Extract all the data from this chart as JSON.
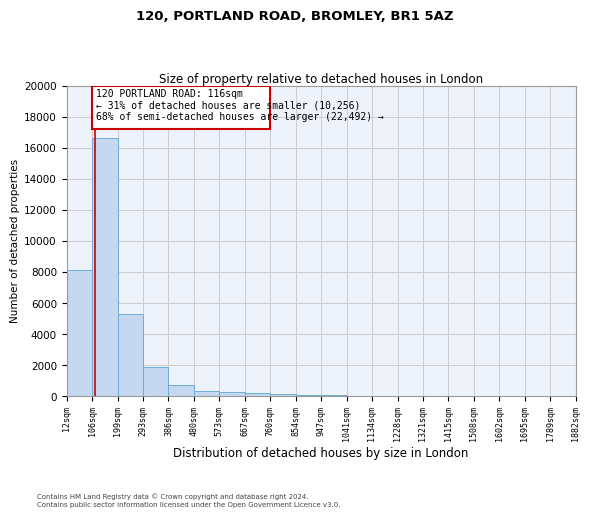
{
  "title1": "120, PORTLAND ROAD, BROMLEY, BR1 5AZ",
  "title2": "Size of property relative to detached houses in London",
  "xlabel": "Distribution of detached houses by size in London",
  "ylabel": "Number of detached properties",
  "annotation_line1": "120 PORTLAND ROAD: 116sqm",
  "annotation_line2": "← 31% of detached houses are smaller (10,256)",
  "annotation_line3": "68% of semi-detached houses are larger (22,492) →",
  "footer1": "Contains HM Land Registry data © Crown copyright and database right 2024.",
  "footer2": "Contains public sector information licensed under the Open Government Licence v3.0.",
  "bin_edges": [
    12,
    106,
    199,
    293,
    386,
    480,
    573,
    667,
    760,
    854,
    947,
    1041,
    1134,
    1228,
    1321,
    1415,
    1508,
    1602,
    1695,
    1789,
    1882
  ],
  "bar_heights": [
    8100,
    16600,
    5300,
    1850,
    750,
    350,
    275,
    200,
    150,
    80,
    60,
    45,
    35,
    25,
    18,
    12,
    9,
    7,
    5,
    4
  ],
  "bar_color": "#c5d8f0",
  "bar_edgecolor": "#6baed6",
  "property_size": 116,
  "vline_color": "#cc0000",
  "annotation_box_color": "#cc0000",
  "ylim": [
    0,
    20000
  ],
  "yticks": [
    0,
    2000,
    4000,
    6000,
    8000,
    10000,
    12000,
    14000,
    16000,
    18000,
    20000
  ],
  "tick_labels": [
    "12sqm",
    "106sqm",
    "199sqm",
    "293sqm",
    "386sqm",
    "480sqm",
    "573sqm",
    "667sqm",
    "760sqm",
    "854sqm",
    "947sqm",
    "1041sqm",
    "1134sqm",
    "1228sqm",
    "1321sqm",
    "1415sqm",
    "1508sqm",
    "1602sqm",
    "1695sqm",
    "1789sqm",
    "1882sqm"
  ],
  "grid_color": "#cccccc",
  "background_color": "#eef2fb"
}
